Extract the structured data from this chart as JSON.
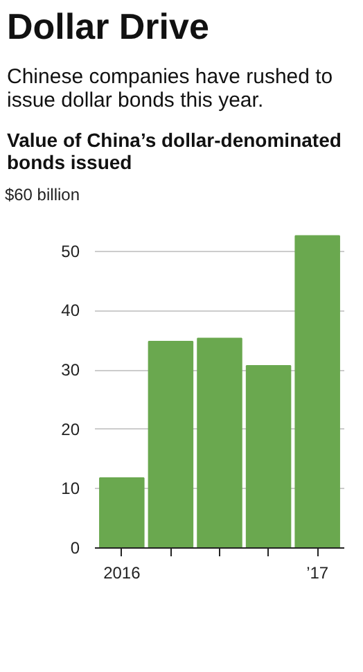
{
  "chart_data": {
    "type": "bar",
    "title": "Dollar Drive",
    "subtitle": "Chinese companies have rushed to issue dollar bonds this year.",
    "ylabel": "Value of China’s dollar-denominated bonds issued",
    "categories": [
      "2016",
      null,
      null,
      null,
      "’17"
    ],
    "values": [
      11.8,
      34.8,
      35.3,
      30.7,
      52.6
    ],
    "color": "#6aa84f",
    "ylim": [
      0,
      60
    ],
    "yticks": [
      0,
      10,
      20,
      30,
      40,
      50,
      {
        "value": 60,
        "label": "$60 billion"
      }
    ],
    "grid": "y"
  }
}
